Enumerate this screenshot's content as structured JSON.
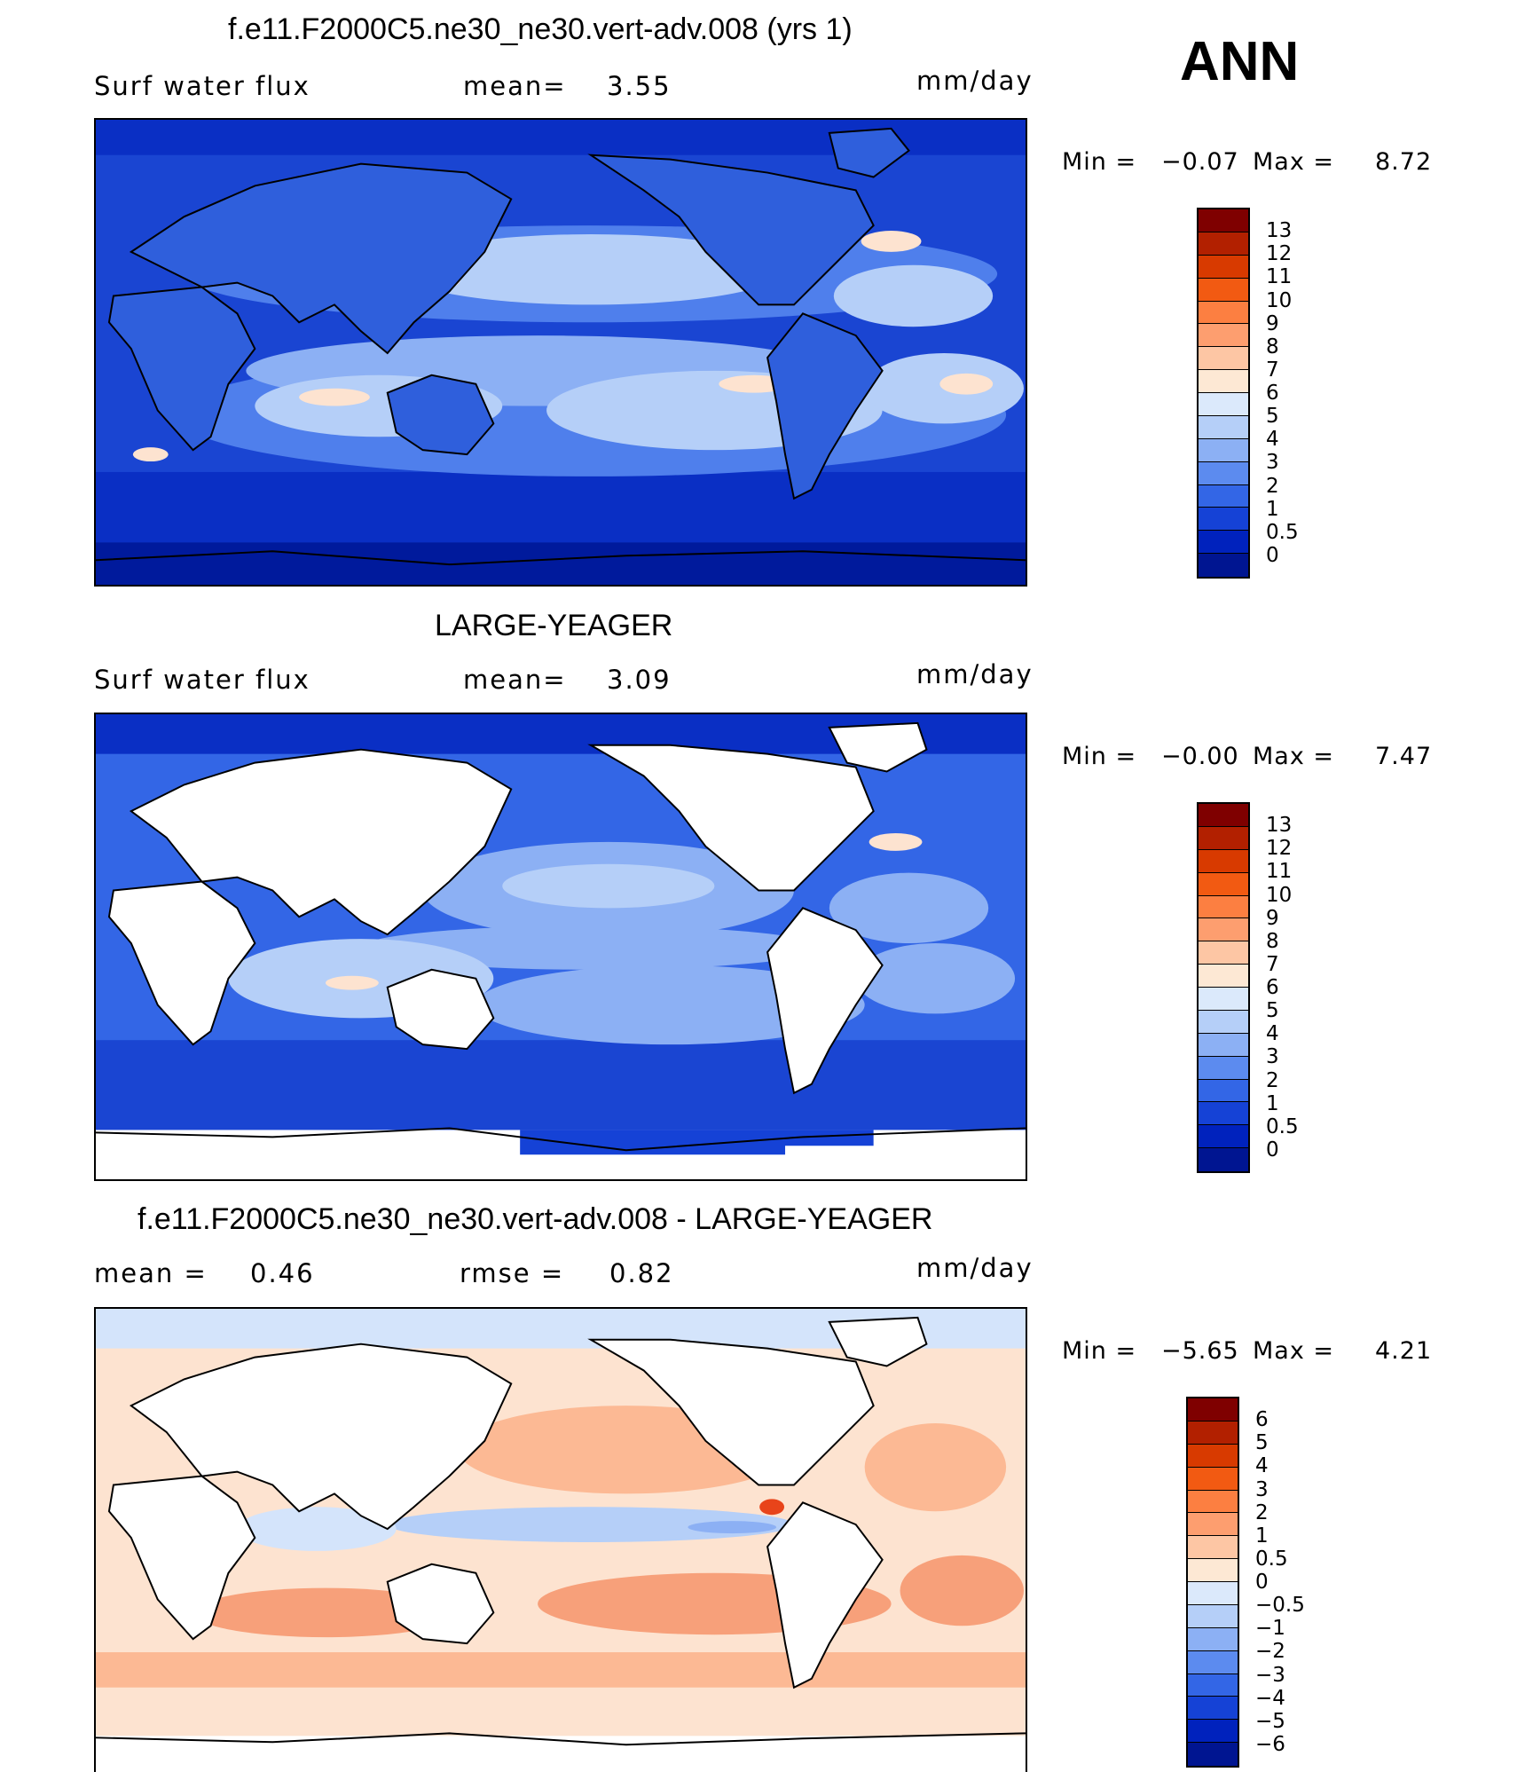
{
  "season": "ANN",
  "units": "mm/day",
  "panels": [
    {
      "title": "f.e11.F2000C5.ne30_ne30.vert-adv.008 (yrs 1)",
      "variable": "Surf water flux",
      "mean_label": "mean=",
      "mean": "3.55",
      "units": "mm/day",
      "min_label": "Min =",
      "min": "−0.07",
      "max_label": "Max =",
      "max": "8.72",
      "colorbar": {
        "labels": [
          "13",
          "12",
          "11",
          "10",
          "9",
          "8",
          "7",
          "6",
          "5",
          "4",
          "3",
          "2",
          "1",
          "0.5",
          "0"
        ],
        "colors": [
          "#7f0000",
          "#b22000",
          "#d83a00",
          "#f25a12",
          "#fc7f41",
          "#fd9e6f",
          "#fdc6a4",
          "#fde8d4",
          "#dbe9fb",
          "#b5cff8",
          "#8cb0f4",
          "#5c8bef",
          "#3366e6",
          "#1542d6",
          "#0022bd",
          "#001591"
        ]
      }
    },
    {
      "title": "LARGE-YEAGER",
      "variable": "Surf water flux",
      "mean_label": "mean=",
      "mean": "3.09",
      "units": "mm/day",
      "min_label": "Min =",
      "min": "−0.00",
      "max_label": "Max =",
      "max": "7.47",
      "colorbar": {
        "labels": [
          "13",
          "12",
          "11",
          "10",
          "9",
          "8",
          "7",
          "6",
          "5",
          "4",
          "3",
          "2",
          "1",
          "0.5",
          "0"
        ],
        "colors": [
          "#7f0000",
          "#b22000",
          "#d83a00",
          "#f25a12",
          "#fc7f41",
          "#fd9e6f",
          "#fdc6a4",
          "#fde8d4",
          "#dbe9fb",
          "#b5cff8",
          "#8cb0f4",
          "#5c8bef",
          "#3366e6",
          "#1542d6",
          "#0022bd",
          "#001591"
        ]
      }
    },
    {
      "title": "f.e11.F2000C5.ne30_ne30.vert-adv.008 - LARGE-YEAGER",
      "mean_label": "mean =",
      "mean": "0.46",
      "rmse_label": "rmse =",
      "rmse": "0.82",
      "units": "mm/day",
      "min_label": "Min =",
      "min": "−5.65",
      "max_label": "Max =",
      "max": "4.21",
      "colorbar": {
        "labels": [
          "6",
          "5",
          "4",
          "3",
          "2",
          "1",
          "0.5",
          "0",
          "−0.5",
          "−1",
          "−2",
          "−3",
          "−4",
          "−5",
          "−6"
        ],
        "colors": [
          "#7f0000",
          "#b22000",
          "#d83a00",
          "#f25a12",
          "#fc7f41",
          "#fd9e6f",
          "#fdc6a4",
          "#fde8d4",
          "#dbe9fb",
          "#b5cff8",
          "#8cb0f4",
          "#5c8bef",
          "#3366e6",
          "#1542d6",
          "#0022bd",
          "#001591"
        ]
      }
    }
  ],
  "colors": {
    "ocean_deep": "#0a2fc4",
    "ocean_mid": "#4f7fec",
    "ocean_light": "#b5cff8",
    "land_model": "#2f5fdc",
    "warm": "#f7a07a",
    "warm_light": "#fde3d0",
    "cool_light": "#d4e4fb",
    "coast": "#000000"
  }
}
